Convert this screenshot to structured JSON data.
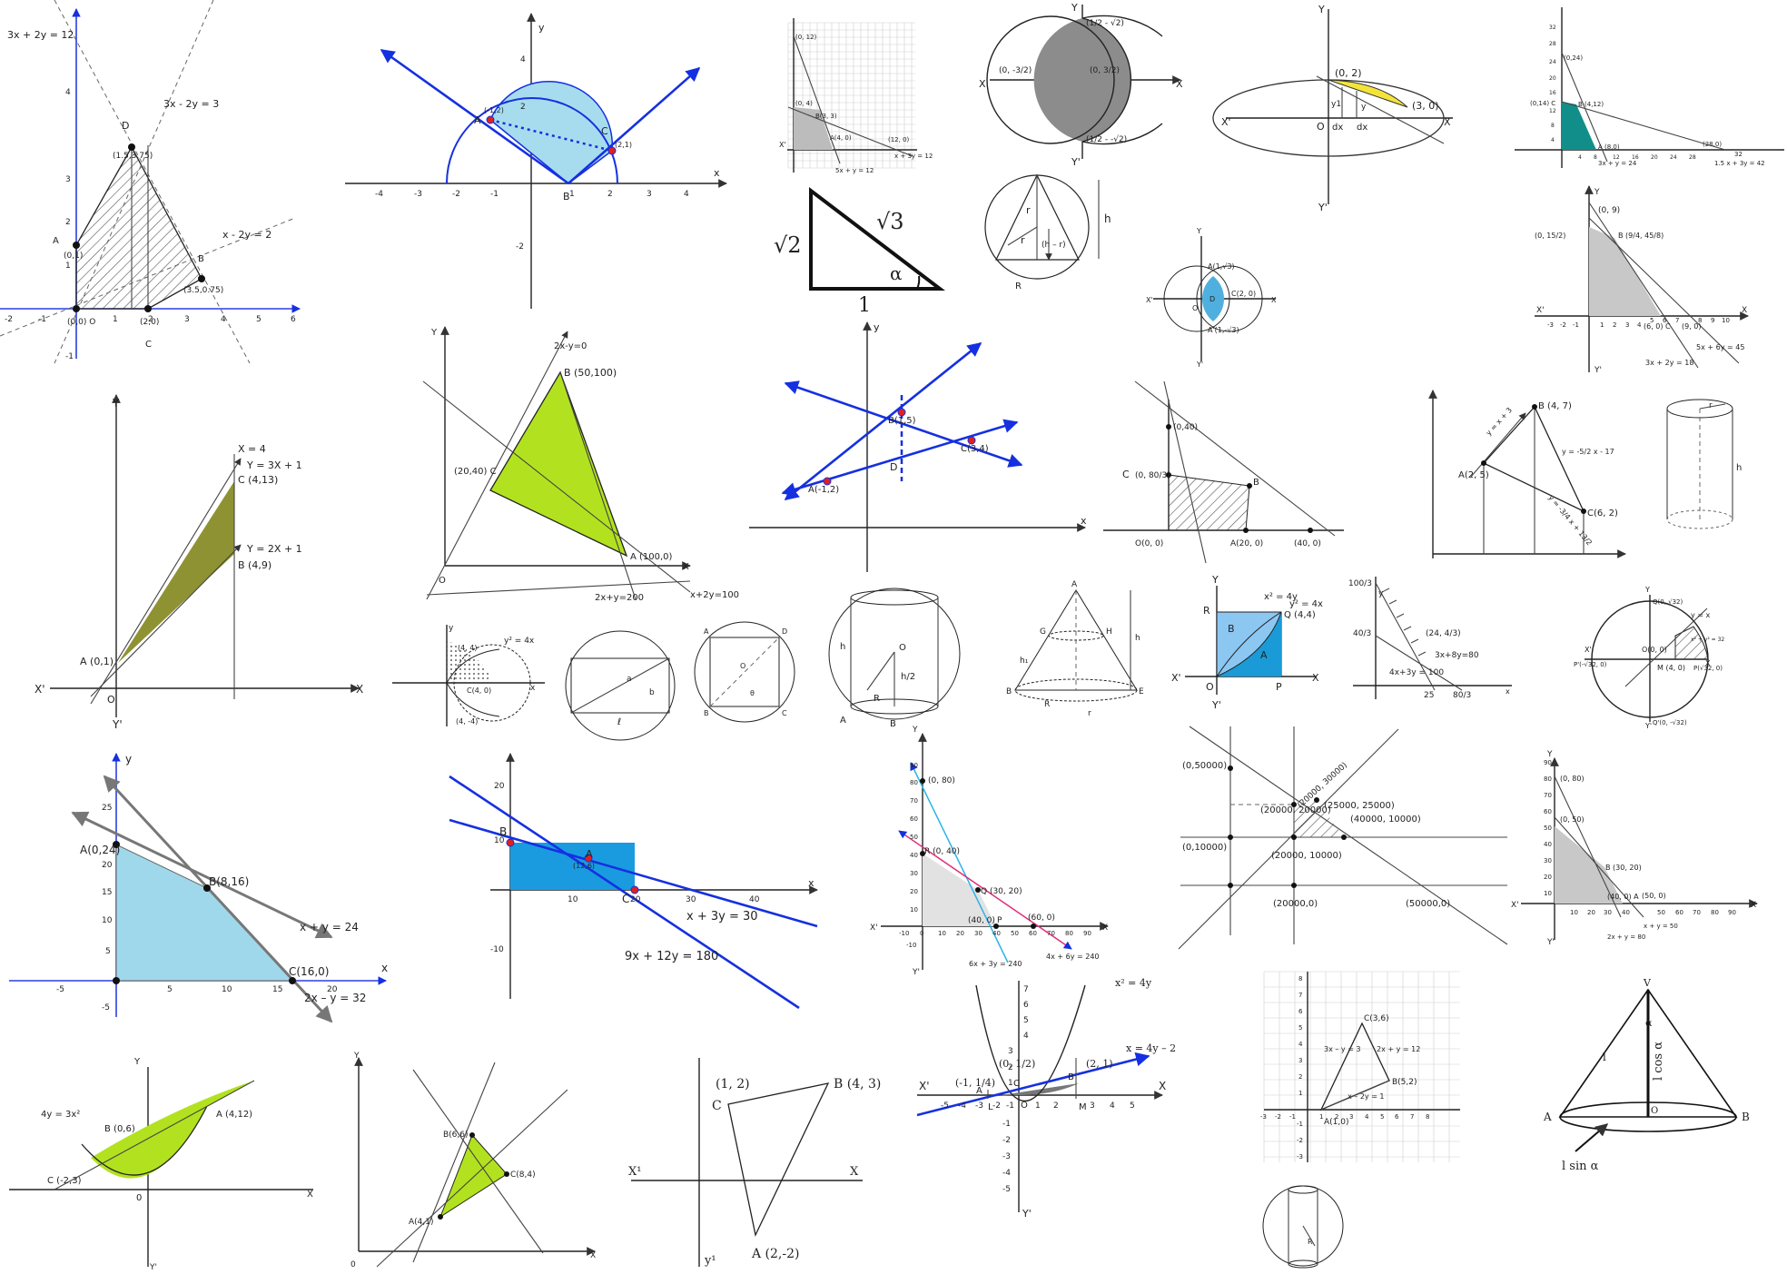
{
  "colors": {
    "blue": "#1530e0",
    "skyblue": "#9fd8ea",
    "lime": "#b2e21f",
    "olive": "#8f9232",
    "teal": "#128e8a",
    "gray": "#c8c8c8",
    "yellow": "#f4e43a",
    "lightblue": "#8cc7f2",
    "hatch": "#555555"
  },
  "icons": [
    "arrow-head-icon"
  ],
  "p1": {
    "eq1": "3x + 2y = 12",
    "eq2": "3x - 2y = 3",
    "eq3": "x - 2y = 2",
    "pD": "D",
    "pDc": "(1.5,3.75)",
    "pA": "A",
    "pAc": "(0,1)",
    "pB": "B",
    "pBc": "(3.5,0.75)",
    "pO": "(0,0) O",
    "p2": "(2,0)",
    "pC": "C",
    "xt": [
      "-2",
      "-1",
      "1",
      "2",
      "3",
      "4",
      "5",
      "6"
    ],
    "yt": [
      "4",
      "3",
      "2",
      "1",
      "-1"
    ]
  },
  "p2": {
    "y": "y",
    "x": "x",
    "A": "A",
    "Ac": "(-1,2)",
    "B": "B",
    "C": "C",
    "Cc": "(2,1)",
    "xt": [
      "-4",
      "-3",
      "-2",
      "-1",
      "1",
      "2",
      "3",
      "4"
    ],
    "yt": [
      "4",
      "2",
      "-2"
    ]
  },
  "p3": {
    "l1": "5x + y = 12",
    "l2": "x + 3y = 12",
    "a": "(0, 12)",
    "b": "(0, 4)",
    "c": "B(3, 3)",
    "d": "A(4, 0)",
    "e": "(12, 0)",
    "X": "X'"
  },
  "p4": {
    "X": "X",
    "Xp": "X'",
    "Y": "Y",
    "Yp": "Y'",
    "top": "(1/2 - √2)",
    "bot": "(1/2 - -√2)",
    "left": "(0, -3/2)",
    "right": "(0, 3/2)"
  },
  "p5": {
    "X": "X",
    "Xp": "X'",
    "Y": "Y",
    "Yp": "Y'",
    "a": "(0, 2)",
    "b": "(3, 0)",
    "O": "O",
    "dx1": "dx",
    "dx2": "dx",
    "y1": "y1",
    "y": "y"
  },
  "p6": {
    "a": "(0,24)",
    "b": "(0,14) C",
    "c": "B (4,12)",
    "d": "A (8,0)",
    "e": "(28,0)",
    "f": "32",
    "l1": "3x + y = 24",
    "l2": "1.5 x + 3y = 42",
    "yt": [
      "32",
      "28",
      "24",
      "20",
      "16",
      "12",
      "8",
      "4"
    ],
    "xt": [
      "4",
      "8",
      "12",
      "16",
      "20",
      "24",
      "28"
    ]
  },
  "tri": {
    "a": "√2",
    "b": "√3",
    "c": "1",
    "al": "α"
  },
  "cone1": {
    "r": "r",
    "r2": "r",
    "h": "h",
    "hr": "(h – r)",
    "R": "R"
  },
  "circ2": {
    "A": "A(1,√3)",
    "D": "D",
    "C": "C(2, 0)",
    "O": "O",
    "Ap": "A'(1,-√3)",
    "X": "X",
    "Xp": "X'",
    "Y": "Y",
    "Yp": "Y'"
  },
  "p7": {
    "a": "(0, 9)",
    "b": "(0, 15/2)",
    "c": "B (9/4, 45/8)",
    "d": "(6, 0) C",
    "e": "(9, 0)",
    "l1": "5x + 6y = 45",
    "l2": "3x + 2y = 18",
    "X": "X",
    "Xp": "X'",
    "Y": "Y",
    "Yp": "Y'",
    "xt": [
      "-3",
      "-2",
      "-1",
      "1",
      "2",
      "3",
      "4",
      "5",
      "6",
      "7",
      "8",
      "9",
      "10"
    ]
  },
  "p8": {
    "x4": "X = 4",
    "l1": "Y = 3X + 1",
    "C": "C (4,13)",
    "l2": "Y = 2X + 1",
    "B": "B (4,9)",
    "A": "A (0,1)",
    "O": "O",
    "X": "X",
    "Xp": "X'",
    "Y": "Y",
    "Yp": "Y'"
  },
  "p9": {
    "l1": "2x-y=0",
    "B": "B (50,100)",
    "C": "(20,40) C",
    "A": "A (100,0)",
    "l2": "2x+y=200",
    "l3": "x+2y=100",
    "O": "O",
    "X": "X",
    "Y": "Y"
  },
  "p10": {
    "A": "A(-1,2)",
    "B": "B(1,5)",
    "C": "C(3,4)",
    "D": "D",
    "y": "y",
    "x": "x"
  },
  "p11": {
    "a": "(0,40)",
    "C": "C",
    "Cc": "(0, 80/3)",
    "B": "B",
    "O": "O(0, 0)",
    "A": "A(20, 0)",
    "e": "(40, 0)"
  },
  "p12": {
    "B": "B (4, 7)",
    "A": "A(2, 5)",
    "C": "C(6, 2)",
    "l1": "y = x + 3",
    "l2": "y = -5/2 x - 17",
    "l3": "y = -3/4 x + 13/2"
  },
  "cyl": {
    "r": "r",
    "h": "h"
  },
  "p13": {
    "a": "(4, 4)",
    "eq": "y² = 4x",
    "c": "C(4, 0)",
    "d": "(4, -4)",
    "x": "x",
    "y": "y"
  },
  "rect": {
    "a": "a",
    "b": "b",
    "l": "ℓ"
  },
  "sq": {
    "A": "A",
    "B": "B",
    "C": "C",
    "D": "D",
    "O": "O",
    "th": "θ"
  },
  "cyl2": {
    "h": "h",
    "R": "R",
    "O": "O",
    "frac": "h/2",
    "A": "A",
    "B": "B"
  },
  "frust": {
    "A": "A",
    "G": "G",
    "H": "H",
    "B": "B",
    "E": "E",
    "R": "R",
    "r": "r",
    "h": "h",
    "h1": "h₁"
  },
  "sqp": {
    "Y": "Y",
    "R": "R",
    "e1": "x² = 4y",
    "e2": "y² = 4x",
    "Q": "Q (4,4)",
    "B": "B",
    "A": "A",
    "Xp": "X'",
    "X": "X",
    "O": "O",
    "P": "P",
    "Yp": "Y'"
  },
  "p14": {
    "a": "100/3",
    "b": "40/3",
    "y": "y",
    "c": "(24, 4/3)",
    "l1": "3x+8y=80",
    "l2": "4x+3y = 100",
    "d": "25",
    "e": "80/3",
    "x": "x"
  },
  "p15": {
    "Q": "Q(0, √32)",
    "yx": "y = x",
    "eq": "x² + y² = 32",
    "O": "O(0, 0)",
    "M": "M (4, 0)",
    "P": "P(√32, 0)",
    "Pp": "P'(-√32, 0)",
    "Qp": "Q'(0, -√32)",
    "Xp": "X'",
    "X": "X",
    "Y": "Y",
    "Yp": "Y'"
  },
  "p16": {
    "y": "y",
    "x": "x",
    "A": "A(0,24)",
    "B": "B(8,16)",
    "C": "C(16,0)",
    "l1": "x + y = 24",
    "l2": "2x – y = 32",
    "yt": [
      "25",
      "20",
      "15",
      "10",
      "5",
      "-5"
    ],
    "xt": [
      "-5",
      "5",
      "10",
      "15",
      "20"
    ]
  },
  "p17": {
    "B": "B",
    "A": "A",
    "Ac": "(12,6)",
    "C": "C",
    "l1": "x + 3y = 30",
    "l2": "9x + 12y = 180",
    "yt": [
      "20",
      "10",
      "-10"
    ],
    "xt": [
      "10",
      "20",
      "30",
      "40"
    ],
    "x": "x"
  },
  "p18": {
    "a": "(0, 80)",
    "R": "R (0, 40)",
    "Q": "Q (30, 20)",
    "b": "(40, 0)",
    "P": "P",
    "c": "(60, 0)",
    "l1": "6x + 3y = 240",
    "l2": "4x + 6y = 240",
    "X": "X",
    "Xp": "X'",
    "Y": "Y",
    "Yp": "Y'",
    "yt": [
      "90",
      "80",
      "70",
      "60",
      "50",
      "40",
      "30",
      "20",
      "10",
      "-10"
    ],
    "xt": [
      "-10",
      "0",
      "10",
      "20",
      "30",
      "40",
      "50",
      "60",
      "70",
      "80",
      "90"
    ]
  },
  "p19": {
    "a": "(0,50000)",
    "b": "(0,10000)",
    "c": "(20000, 30000)",
    "d": "(25000, 25000)",
    "e": "(20000, 20000)",
    "f": "(40000, 10000)",
    "g": "(20000, 10000)",
    "h": "(20000,0)",
    "i": "(50000,0)"
  },
  "p20": {
    "a": "(0, 80)",
    "b": "(0, 50)",
    "B": "B (30, 20)",
    "c": "(50, 0)",
    "A": "(40, 0) A",
    "l1": "x + y = 50",
    "l2": "2x + y = 80",
    "X": "X",
    "Xp": "X'",
    "Y": "Y",
    "Yp": "Y'",
    "yt": [
      "90",
      "80",
      "70",
      "60",
      "50",
      "40",
      "30",
      "20",
      "10"
    ],
    "xt": [
      "10",
      "20",
      "30",
      "40",
      "50",
      "60",
      "70",
      "80",
      "90"
    ]
  },
  "p21": {
    "Y": "Y",
    "Yp": "Y'",
    "X": "X",
    "eq": "4y = 3x²",
    "A": "A (4,12)",
    "B": "B (0,6)",
    "C": "C (-2,3)",
    "O": "0"
  },
  "p22": {
    "B": "B(6,6)",
    "C": "C(8,4)",
    "A": "A(4,1)",
    "O": "0",
    "X": "X",
    "Y": "Y"
  },
  "p23": {
    "pt": "(1, 2)",
    "C": "C",
    "B": "B (4, 3)",
    "A": "A (2,-2)",
    "X": "X",
    "Xp": "X¹",
    "Y": "y¹"
  },
  "p24": {
    "eq1": "x² = 4y",
    "eq2": "x = 4y – 2",
    "a": "(2, 1)",
    "b": "(0, 1/2)",
    "c": "(-1, 1/4)",
    "B": "B",
    "C": "C",
    "A": "A",
    "L": "L",
    "M": "M",
    "O": "O",
    "X": "X",
    "Xp": "X'",
    "Yp": "Y'",
    "xt": [
      "-5",
      "-4",
      "-3",
      "-2",
      "-1",
      "1",
      "2",
      "3",
      "4",
      "5"
    ],
    "yt": [
      "7",
      "6",
      "5",
      "4",
      "3",
      "2",
      "1",
      "-1",
      "-2",
      "-3",
      "-4",
      "-5"
    ]
  },
  "p25": {
    "C": "C(3,6)",
    "l1": "3x – y = 3",
    "l2": "2x + y = 12",
    "B": "B(5,2)",
    "l3": "x – 2y = 1",
    "A": "A(1,0)",
    "yt": [
      "8",
      "7",
      "6",
      "5",
      "4",
      "3",
      "2",
      "1",
      "-1",
      "-2",
      "-3"
    ],
    "xt": [
      "-3",
      "-2",
      "-1",
      "1",
      "2",
      "3",
      "4",
      "5",
      "6",
      "7",
      "8"
    ]
  },
  "cone2": {
    "V": "V",
    "al": "α",
    "l": "l",
    "lc": "l cos α",
    "A": "A",
    "B": "B",
    "O": "O",
    "ls": "l sin α"
  },
  "sph": {
    "R": "R"
  }
}
